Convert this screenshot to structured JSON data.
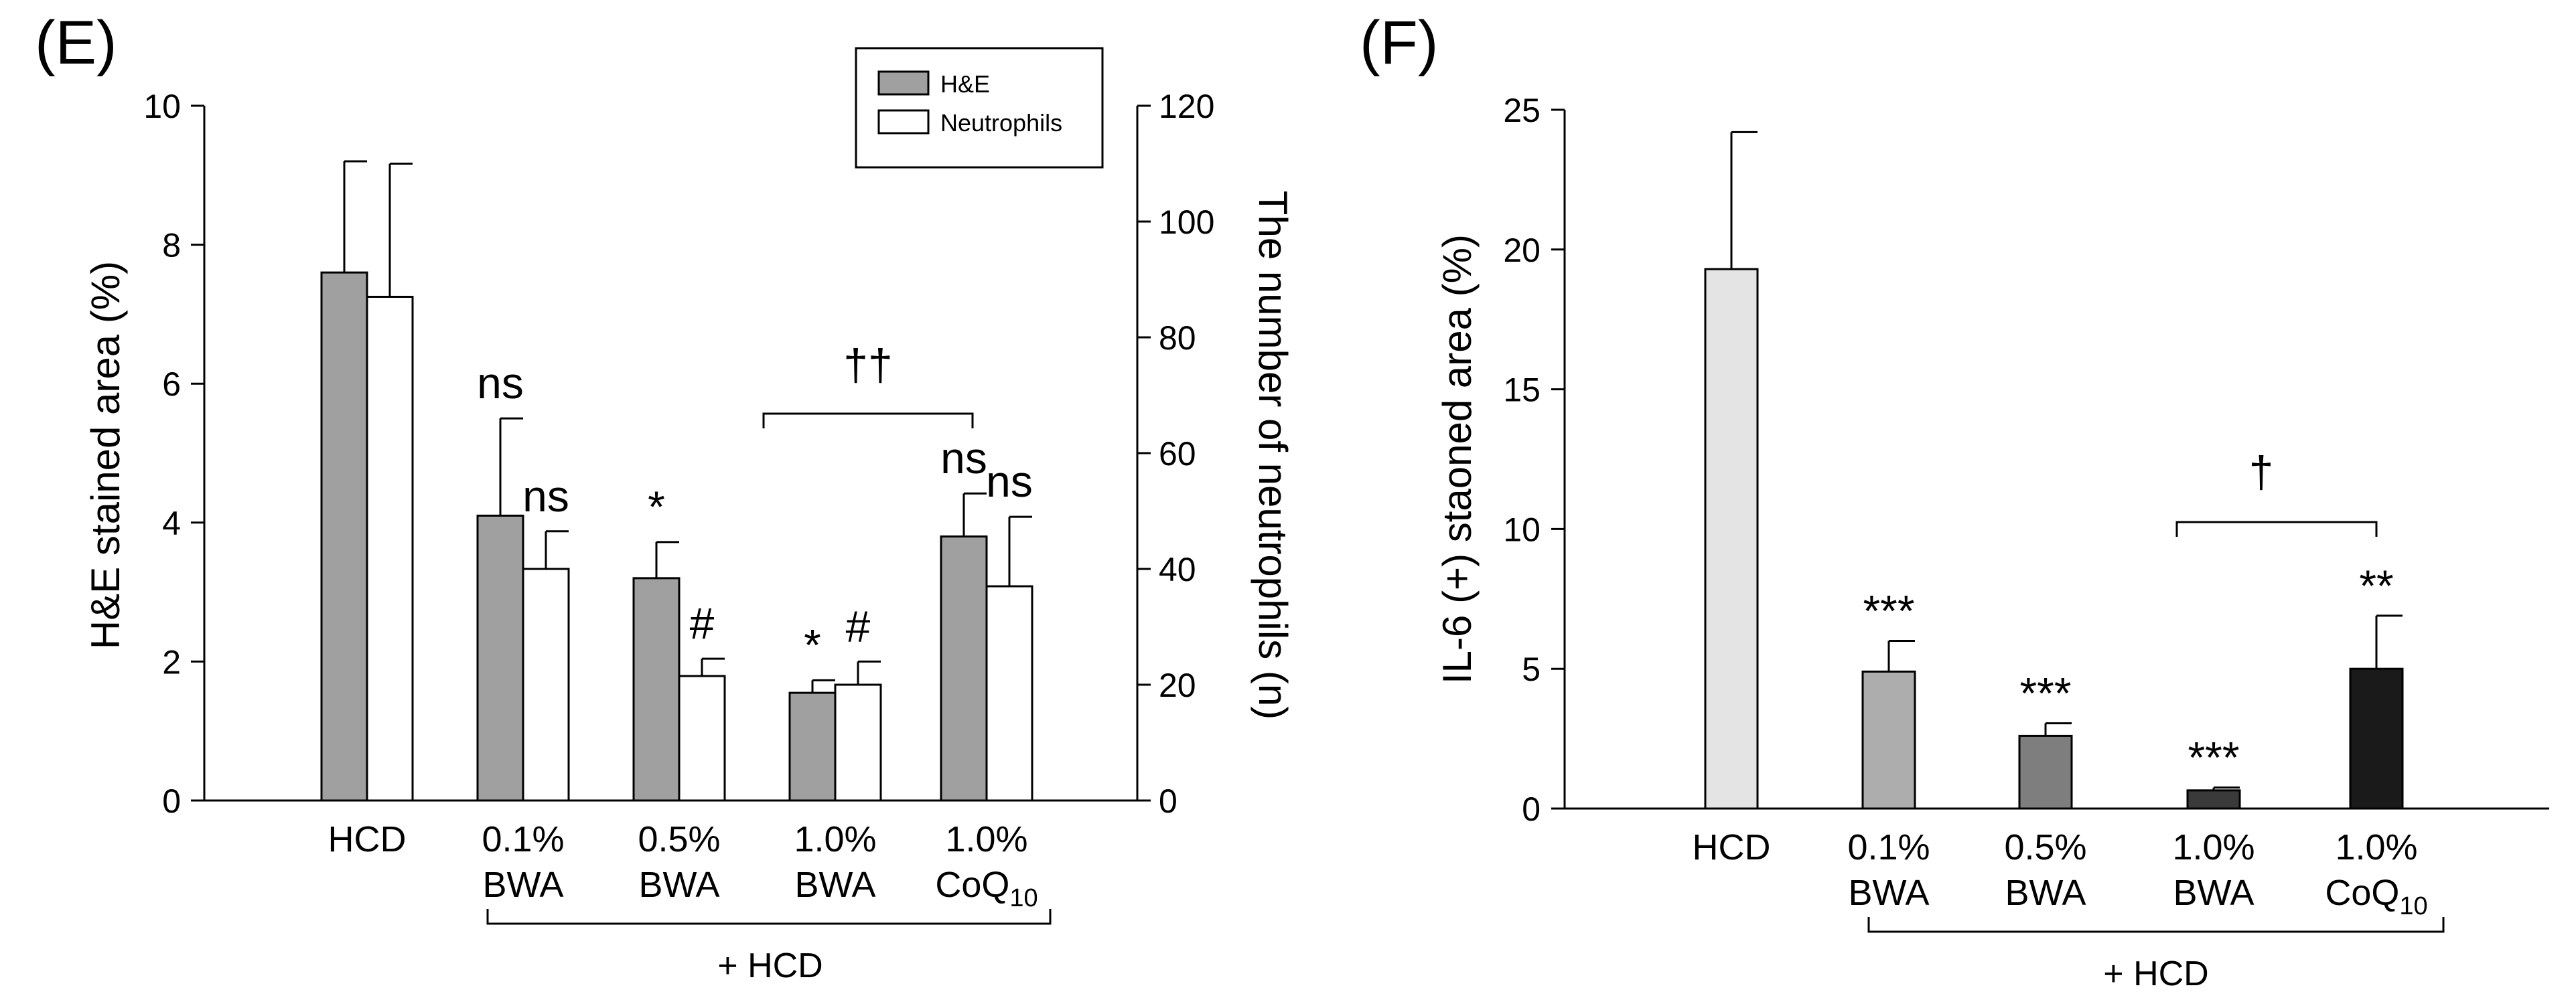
{
  "chart_data": [
    {
      "panel_label": "(E)",
      "type": "bar",
      "categories": [
        [
          "HCD"
        ],
        [
          "0.1%",
          "BWA"
        ],
        [
          "0.5%",
          "BWA"
        ],
        [
          "1.0%",
          "BWA"
        ],
        [
          "1.0%",
          "CoQ",
          "10"
        ]
      ],
      "group_label": "+ HCD",
      "ylabel": "H&E stained area (%)",
      "y2label": "The number of neutrophils (n)",
      "ylim": [
        0,
        10
      ],
      "y2lim": [
        0,
        120
      ],
      "yticks": [
        "0",
        "2",
        "4",
        "6",
        "8",
        "10"
      ],
      "y2ticks": [
        "0",
        "20",
        "40",
        "60",
        "80",
        "100",
        "120"
      ],
      "series": [
        {
          "name": "H&E",
          "axis": "left",
          "color": "#a0a0a0",
          "values": [
            7.6,
            4.1,
            3.2,
            1.55,
            3.8
          ],
          "errors": [
            1.6,
            1.4,
            0.52,
            0.18,
            0.62
          ],
          "labels": [
            "",
            "ns",
            "*",
            "*",
            "ns"
          ]
        },
        {
          "name": "Neutrophils",
          "axis": "right",
          "color": "#ffffff",
          "values": [
            87,
            40,
            21.5,
            20,
            37
          ],
          "errors": [
            23,
            6.5,
            3,
            4,
            12
          ],
          "labels": [
            "",
            "ns",
            "#",
            "#",
            "ns"
          ]
        }
      ],
      "bracket": {
        "from": 3,
        "to": 4,
        "label": "††"
      },
      "legend": {
        "position": "top-right",
        "entries": [
          "H&E",
          "Neutrophils"
        ]
      }
    },
    {
      "panel_label": "(F)",
      "type": "bar",
      "categories": [
        [
          "HCD"
        ],
        [
          "0.1%",
          "BWA"
        ],
        [
          "0.5%",
          "BWA"
        ],
        [
          "1.0%",
          "BWA"
        ],
        [
          "1.0%",
          "CoQ",
          "10"
        ]
      ],
      "group_label": "+ HCD",
      "ylabel": "IL-6 (+) staoned area (%)",
      "ylim": [
        0,
        25
      ],
      "yticks": [
        "0",
        "5",
        "10",
        "15",
        "20",
        "25"
      ],
      "series": [
        {
          "name": "IL-6",
          "colors": [
            "#e4e4e4",
            "#adadad",
            "#7e7e7e",
            "#3a3a3a",
            "#1a1a1a"
          ],
          "values": [
            19.3,
            4.9,
            2.6,
            0.65,
            5.0
          ],
          "errors": [
            4.9,
            1.1,
            0.45,
            0.1,
            1.9
          ],
          "labels": [
            "",
            "***",
            "***",
            "***",
            "**"
          ]
        }
      ],
      "bracket": {
        "from": 3,
        "to": 4,
        "label": "†"
      }
    }
  ]
}
